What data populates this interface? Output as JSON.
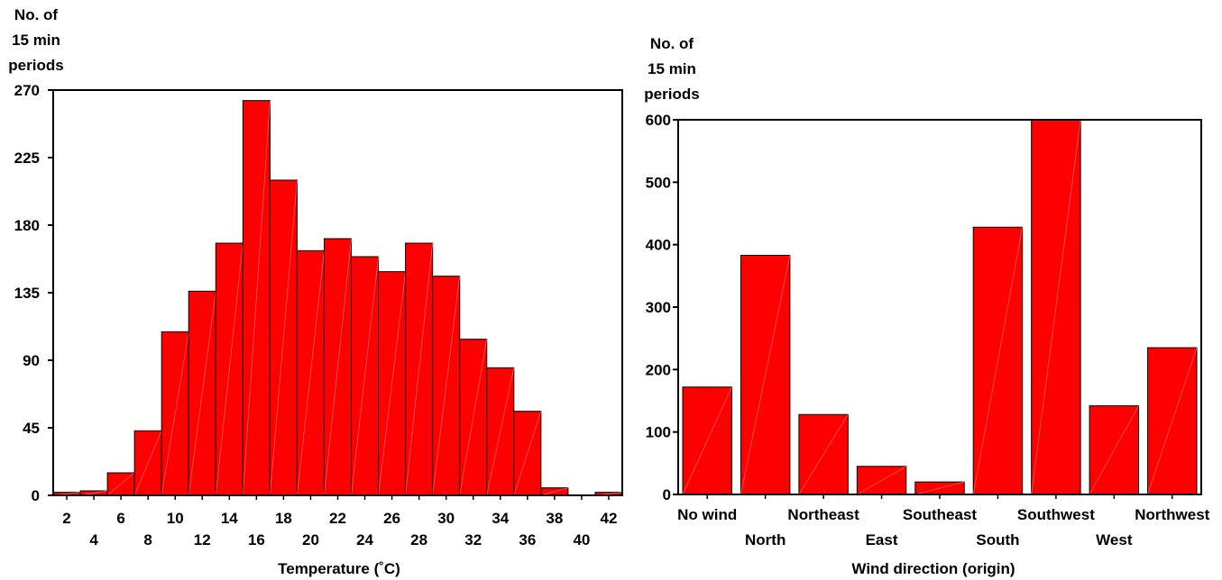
{
  "chart_data": [
    {
      "type": "bar",
      "title": "",
      "ylabel_lines": [
        "No. of",
        "15 min",
        "periods"
      ],
      "xlabel": "Temperature (˚C)",
      "ylim": [
        0,
        270
      ],
      "yticks": [
        0,
        45,
        90,
        135,
        180,
        225,
        270
      ],
      "xtick_row1": [
        "2",
        "6",
        "10",
        "14",
        "18",
        "22",
        "26",
        "30",
        "34",
        "38",
        "42"
      ],
      "xtick_row2": [
        "4",
        "8",
        "12",
        "16",
        "20",
        "24",
        "28",
        "32",
        "36",
        "40"
      ],
      "categories": [
        "2",
        "4",
        "6",
        "8",
        "10",
        "12",
        "14",
        "16",
        "18",
        "20",
        "22",
        "24",
        "26",
        "28",
        "30",
        "32",
        "34",
        "36",
        "38",
        "40",
        "42"
      ],
      "values": [
        2,
        3,
        15,
        43,
        109,
        136,
        168,
        263,
        210,
        163,
        171,
        159,
        149,
        168,
        146,
        104,
        85,
        56,
        5,
        0,
        2
      ],
      "grid": false,
      "bar_color": "#ff0000"
    },
    {
      "type": "bar",
      "title": "",
      "ylabel_lines": [
        "No. of",
        "15 min",
        "periods"
      ],
      "xlabel": "Wind direction (origin)",
      "ylim": [
        0,
        600
      ],
      "yticks": [
        0,
        100,
        200,
        300,
        400,
        500,
        600
      ],
      "xtick_row1": [
        "No wind",
        "Northeast",
        "Southeast",
        "Southwest",
        "Northwest"
      ],
      "xtick_row2": [
        "North",
        "East",
        "South",
        "West"
      ],
      "categories": [
        "No wind",
        "North",
        "Northeast",
        "East",
        "Southeast",
        "South",
        "Southwest",
        "West",
        "Northwest"
      ],
      "values": [
        172,
        383,
        128,
        45,
        20,
        428,
        600,
        142,
        235
      ],
      "grid": false,
      "bar_color": "#ff0000"
    }
  ]
}
